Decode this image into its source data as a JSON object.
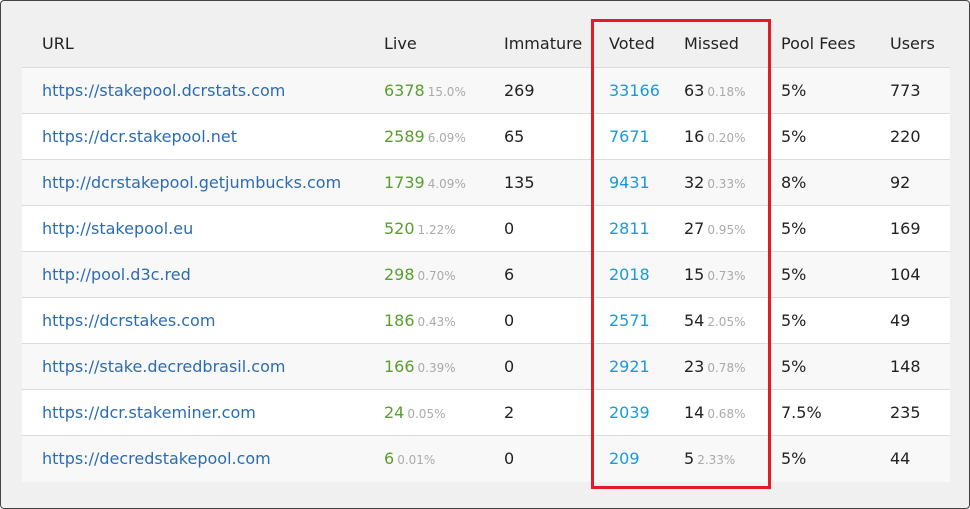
{
  "table": {
    "headers": [
      "URL",
      "Live",
      "Immature",
      "Voted",
      "Missed",
      "Pool Fees",
      "Users"
    ],
    "rows": [
      [
        "https://stakepool.dcrstats.com",
        "6378",
        "15.0%",
        "269",
        "33166",
        "63",
        "0.18%",
        "5%",
        "773"
      ],
      [
        "https://dcr.stakepool.net",
        "2589",
        "6.09%",
        "65",
        "7671",
        "16",
        "0.20%",
        "5%",
        "220"
      ],
      [
        "http://dcrstakepool.getjumbucks.com",
        "1739",
        "4.09%",
        "135",
        "9431",
        "32",
        "0.33%",
        "8%",
        "92"
      ],
      [
        "http://stakepool.eu",
        "520",
        "1.22%",
        "0",
        "2811",
        "27",
        "0.95%",
        "5%",
        "169"
      ],
      [
        "http://pool.d3c.red",
        "298",
        "0.70%",
        "6",
        "2018",
        "15",
        "0.73%",
        "5%",
        "104"
      ],
      [
        "https://dcrstakes.com",
        "186",
        "0.43%",
        "0",
        "2571",
        "54",
        "2.05%",
        "5%",
        "49"
      ],
      [
        "https://stake.decredbrasil.com",
        "166",
        "0.39%",
        "0",
        "2921",
        "23",
        "0.78%",
        "5%",
        "148"
      ],
      [
        "https://dcr.stakeminer.com",
        "24",
        "0.05%",
        "2",
        "2039",
        "14",
        "0.68%",
        "7.5%",
        "235"
      ],
      [
        "https://decredstakepool.com",
        "6",
        "0.01%",
        "0",
        "209",
        "5",
        "2.33%",
        "5%",
        "44"
      ]
    ]
  }
}
